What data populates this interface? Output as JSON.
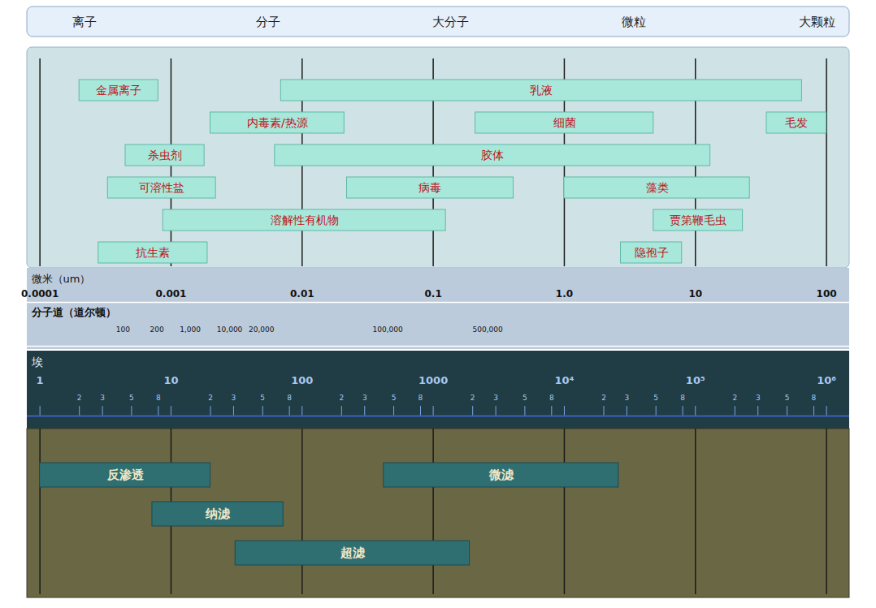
{
  "chart_data": {
    "type": "range_bar",
    "log": "x",
    "grid": true,
    "size_classes": [
      "离子",
      "分子",
      "大分子",
      "微粒",
      "大颗粒"
    ],
    "x_label": "微米（um）",
    "xlim": [
      8e-05,
      150
    ],
    "xticks": [
      0.0001,
      0.001,
      0.01,
      0.1,
      {
        "value": 1,
        "label": "1.0"
      },
      10,
      100
    ],
    "mw_label": "分子道（道尔顿）",
    "mw_ticks": [
      {
        "value": 0.00043,
        "label": "100"
      },
      {
        "value": 0.00078,
        "label": "200"
      },
      {
        "value": 0.0014,
        "label": "1,000"
      },
      {
        "value": 0.0028,
        "label": "10,000"
      },
      {
        "value": 0.0049,
        "label": "20,000"
      },
      {
        "value": 0.045,
        "label": "100,000"
      },
      {
        "value": 0.26,
        "label": "500,000"
      }
    ],
    "angstrom_label": "埃",
    "angstrom_ticks": [
      {
        "value": 0.0001,
        "label": "1"
      },
      {
        "value": 0.001,
        "label": "10"
      },
      {
        "value": 0.01,
        "label": "100"
      },
      {
        "value": 0.1,
        "label": "1000"
      },
      {
        "value": 1,
        "label": "10⁴"
      },
      {
        "value": 10,
        "label": "10⁵"
      },
      {
        "value": 100,
        "label": "10⁶"
      }
    ],
    "angstrom_minor_ticks": [
      {
        "value": 0.0002,
        "label": "2"
      },
      {
        "value": 0.0003,
        "label": "3"
      },
      {
        "value": 0.0005,
        "label": "5"
      },
      {
        "value": 0.0008,
        "label": "8"
      },
      {
        "value": 0.002,
        "label": "2"
      },
      {
        "value": 0.003,
        "label": "3"
      },
      {
        "value": 0.005,
        "label": "5"
      },
      {
        "value": 0.008,
        "label": "8"
      },
      {
        "value": 0.02,
        "label": "2"
      },
      {
        "value": 0.03,
        "label": "3"
      },
      {
        "value": 0.05,
        "label": "5"
      },
      {
        "value": 0.08,
        "label": "8"
      },
      {
        "value": 0.2,
        "label": "2"
      },
      {
        "value": 0.3,
        "label": "3"
      },
      {
        "value": 0.5,
        "label": "5"
      },
      {
        "value": 0.8,
        "label": "8"
      },
      {
        "value": 2,
        "label": "2"
      },
      {
        "value": 3,
        "label": "3"
      },
      {
        "value": 5,
        "label": "5"
      },
      {
        "value": 8,
        "label": "8"
      },
      {
        "value": 20,
        "label": "2"
      },
      {
        "value": 30,
        "label": "3"
      },
      {
        "value": 50,
        "label": "5"
      },
      {
        "value": 80,
        "label": "8"
      }
    ],
    "contaminants": {
      "color": "#a8e8da",
      "bars": [
        {
          "name": "乳液",
          "start": 0.0069,
          "end": 65
        },
        {
          "name": "金属离子",
          "start": 0.0002,
          "end": 0.0008
        },
        {
          "name": "内毒素/热源",
          "start": 0.002,
          "end": 0.021
        },
        {
          "name": "细菌",
          "start": 0.21,
          "end": 4.8
        },
        {
          "name": "杀虫剂",
          "start": 0.00045,
          "end": 0.0018
        },
        {
          "name": "胶体",
          "start": 0.0062,
          "end": 13
        },
        {
          "name": "可溶性盐",
          "start": 0.00033,
          "end": 0.0022
        },
        {
          "name": "病毒",
          "start": 0.022,
          "end": 0.41
        },
        {
          "name": "藻类",
          "start": 1,
          "end": 26
        },
        {
          "name": "溶解性有机物",
          "start": 0.00087,
          "end": 0.125
        },
        {
          "name": "毛发",
          "start": 35,
          "end": 100
        },
        {
          "name": "贾第鞭毛虫",
          "start": 4.8,
          "end": 23
        },
        {
          "name": "抗生素",
          "start": 0.00028,
          "end": 0.0019
        },
        {
          "name": "隐孢子",
          "start": 2.7,
          "end": 7.9
        }
      ]
    },
    "processes": {
      "color": "#2f6f72",
      "bars": [
        {
          "name": "反渗透",
          "start": 0.0001,
          "end": 0.002
        },
        {
          "name": "微滤",
          "start": 0.042,
          "end": 2.6
        },
        {
          "name": "纳滤",
          "start": 0.00072,
          "end": 0.0072
        },
        {
          "name": "超滤",
          "start": 0.0031,
          "end": 0.19
        }
      ]
    }
  }
}
